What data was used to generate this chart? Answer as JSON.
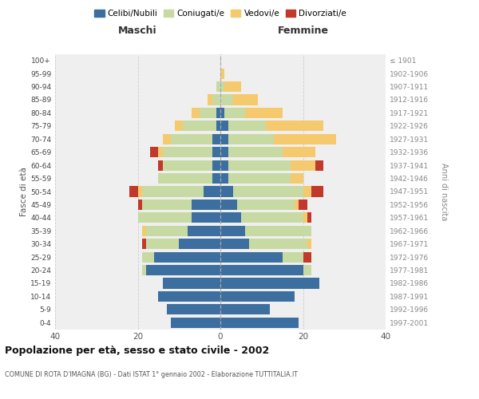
{
  "age_groups": [
    "0-4",
    "5-9",
    "10-14",
    "15-19",
    "20-24",
    "25-29",
    "30-34",
    "35-39",
    "40-44",
    "45-49",
    "50-54",
    "55-59",
    "60-64",
    "65-69",
    "70-74",
    "75-79",
    "80-84",
    "85-89",
    "90-94",
    "95-99",
    "100+"
  ],
  "birth_years": [
    "1997-2001",
    "1992-1996",
    "1987-1991",
    "1982-1986",
    "1977-1981",
    "1972-1976",
    "1967-1971",
    "1962-1966",
    "1957-1961",
    "1952-1956",
    "1947-1951",
    "1942-1946",
    "1937-1941",
    "1932-1936",
    "1927-1931",
    "1922-1926",
    "1917-1921",
    "1912-1916",
    "1907-1911",
    "1902-1906",
    "≤ 1901"
  ],
  "males": {
    "celibi": [
      12,
      13,
      15,
      14,
      18,
      16,
      10,
      8,
      7,
      7,
      4,
      2,
      2,
      2,
      2,
      1,
      1,
      0,
      0,
      0,
      0
    ],
    "coniugati": [
      0,
      0,
      0,
      0,
      1,
      3,
      8,
      10,
      13,
      12,
      15,
      13,
      12,
      12,
      10,
      8,
      4,
      2,
      1,
      0,
      0
    ],
    "vedovi": [
      0,
      0,
      0,
      0,
      0,
      0,
      0,
      1,
      0,
      0,
      1,
      0,
      0,
      1,
      2,
      2,
      2,
      1,
      0,
      0,
      0
    ],
    "divorziati": [
      0,
      0,
      0,
      0,
      0,
      0,
      1,
      0,
      0,
      1,
      2,
      0,
      1,
      2,
      0,
      0,
      0,
      0,
      0,
      0,
      0
    ]
  },
  "females": {
    "nubili": [
      19,
      12,
      18,
      24,
      20,
      15,
      7,
      6,
      5,
      4,
      3,
      2,
      2,
      2,
      2,
      2,
      1,
      0,
      0,
      0,
      0
    ],
    "coniugate": [
      0,
      0,
      0,
      0,
      2,
      5,
      14,
      16,
      15,
      14,
      17,
      15,
      15,
      13,
      11,
      9,
      5,
      3,
      1,
      0,
      0
    ],
    "vedove": [
      0,
      0,
      0,
      0,
      0,
      0,
      1,
      0,
      1,
      1,
      2,
      3,
      6,
      8,
      15,
      14,
      9,
      6,
      4,
      1,
      0
    ],
    "divorziate": [
      0,
      0,
      0,
      0,
      0,
      2,
      0,
      0,
      1,
      2,
      3,
      0,
      2,
      0,
      0,
      0,
      0,
      0,
      0,
      0,
      0
    ]
  },
  "colors": {
    "celibi": "#3c6fa0",
    "coniugati": "#c8daa4",
    "vedovi": "#f5ca6e",
    "divorziati": "#c0392b"
  },
  "title": "Popolazione per età, sesso e stato civile - 2002",
  "subtitle": "COMUNE DI ROTA D'IMAGNA (BG) - Dati ISTAT 1° gennaio 2002 - Elaborazione TUTTITALIA.IT",
  "xlabel_left": "Maschi",
  "xlabel_right": "Femmine",
  "ylabel_left": "Fasce di età",
  "ylabel_right": "Anni di nascita",
  "xlim": 40,
  "bg_color": "#efefef"
}
